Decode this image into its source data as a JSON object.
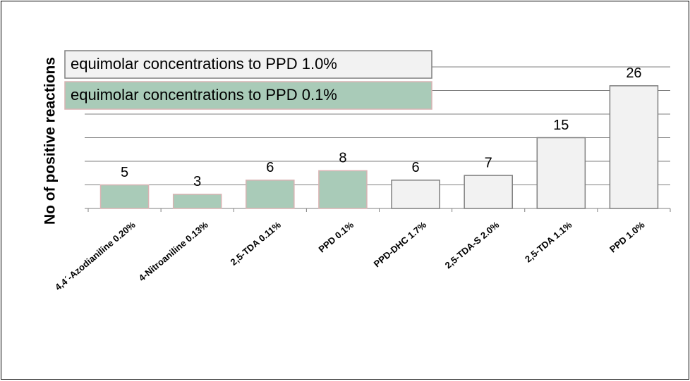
{
  "chart_data": {
    "type": "bar",
    "ylabel": "No of positive reactions",
    "categories": [
      "4,4´-Azodianiline 0.20%",
      "4-Nitroaniline 0.13%",
      "2,5-TDA 0.11%",
      "PPD 0.1%",
      "PPD-DHC 1.7%",
      "2,5-TDA-S 2.0%",
      "2,5-TDA 1.1%",
      "PPD 1.0%"
    ],
    "series": [
      {
        "name": "equimolar concentrations to PPD 1.0%",
        "color": "#f2f2f2",
        "edgecolor": "#7f7f7f",
        "values": [
          null,
          null,
          null,
          null,
          6,
          7,
          15,
          26
        ]
      },
      {
        "name": "equimolar concentrations to PPD 0.1%",
        "color": "#a9cbb8",
        "edgecolor": "#d9b3b3",
        "values": [
          5,
          3,
          6,
          8,
          null,
          null,
          null,
          null
        ]
      }
    ],
    "ylim": [
      0,
      30
    ],
    "yticks": [
      0,
      5,
      10,
      15,
      20,
      25,
      30
    ],
    "grid": true,
    "legend": "upper left"
  }
}
